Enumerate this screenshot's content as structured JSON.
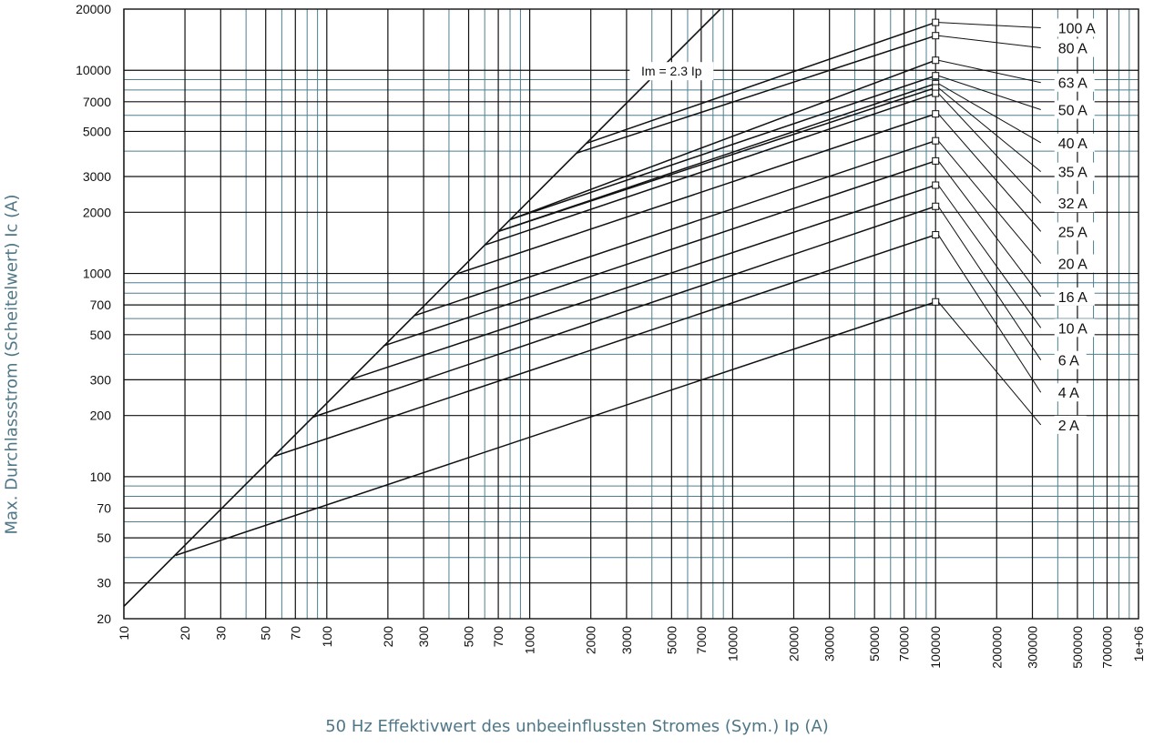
{
  "chart_data": {
    "type": "line",
    "title": "",
    "xlabel": "50 Hz Effektivwert des unbeeinflussten Stromes (Sym.) Ip (A)",
    "ylabel": "Max. Durchlassstrom (Scheitelwert) Ic (A)",
    "xscale": "log",
    "yscale": "log",
    "xlim": [
      10,
      1000000
    ],
    "ylim": [
      20,
      20000
    ],
    "grid": true,
    "x_ticks": [
      "10",
      "20",
      "30",
      "50",
      "70",
      "100",
      "200",
      "300",
      "500",
      "700",
      "1000",
      "2000",
      "3000",
      "5000",
      "7000",
      "10000",
      "20000",
      "30000",
      "50000",
      "70000",
      "100000",
      "200000",
      "300000",
      "500000",
      "700000",
      "1e+06"
    ],
    "x_tick_values": [
      10,
      20,
      30,
      50,
      70,
      100,
      200,
      300,
      500,
      700,
      1000,
      2000,
      3000,
      5000,
      7000,
      10000,
      20000,
      30000,
      50000,
      70000,
      100000,
      200000,
      300000,
      500000,
      700000,
      1000000
    ],
    "y_ticks": [
      "20",
      "30",
      "50",
      "70",
      "100",
      "200",
      "300",
      "500",
      "700",
      "1000",
      "2000",
      "3000",
      "5000",
      "7000",
      "10000",
      "20000"
    ],
    "y_tick_values": [
      20,
      30,
      50,
      70,
      100,
      200,
      300,
      500,
      700,
      1000,
      2000,
      3000,
      5000,
      7000,
      10000,
      20000
    ],
    "reference_line": {
      "label": "Im = 2.3 Ip",
      "points": [
        [
          10,
          23
        ],
        [
          8700,
          20000
        ]
      ],
      "label_at": [
        5000,
        9900
      ]
    },
    "series": [
      {
        "name": "100 A",
        "points": [
          [
            1900,
            4370
          ],
          [
            100000,
            17200
          ]
        ],
        "label_anchor": [
          330000,
          16200
        ]
      },
      {
        "name": "80 A",
        "points": [
          [
            1700,
            3910
          ],
          [
            100000,
            14800
          ]
        ],
        "label_anchor": [
          330000,
          12900
        ]
      },
      {
        "name": "63 A",
        "points": [
          [
            800,
            1840
          ],
          [
            100000,
            11200
          ]
        ],
        "label_anchor": [
          330000,
          8700
        ]
      },
      {
        "name": "50 A",
        "points": [
          [
            800,
            1840
          ],
          [
            100000,
            9400
          ]
        ],
        "label_anchor": [
          330000,
          6400
        ]
      },
      {
        "name": "40 A",
        "points": [
          [
            700,
            1610
          ],
          [
            100000,
            8600
          ]
        ],
        "label_anchor": [
          330000,
          4400
        ]
      },
      {
        "name": "35 A",
        "points": [
          [
            700,
            1610
          ],
          [
            100000,
            8200
          ]
        ],
        "label_anchor": [
          330000,
          3170
        ]
      },
      {
        "name": "32 A",
        "points": [
          [
            600,
            1380
          ],
          [
            100000,
            7700
          ]
        ],
        "label_anchor": [
          330000,
          2220
        ]
      },
      {
        "name": "25 A",
        "points": [
          [
            430,
            990
          ],
          [
            100000,
            6100
          ]
        ],
        "label_anchor": [
          330000,
          1610
        ]
      },
      {
        "name": "20 A",
        "points": [
          [
            270,
            620
          ],
          [
            100000,
            4500
          ]
        ],
        "label_anchor": [
          330000,
          1120
        ]
      },
      {
        "name": "16 A",
        "points": [
          [
            190,
            440
          ],
          [
            100000,
            3580
          ]
        ],
        "label_anchor": [
          330000,
          770
        ]
      },
      {
        "name": "10 A",
        "points": [
          [
            130,
            300
          ],
          [
            100000,
            2720
          ]
        ],
        "label_anchor": [
          330000,
          540
        ]
      },
      {
        "name": "6 A",
        "points": [
          [
            85,
            196
          ],
          [
            100000,
            2140
          ]
        ],
        "label_anchor": [
          330000,
          375
        ]
      },
      {
        "name": "4 A",
        "points": [
          [
            55,
            126
          ],
          [
            100000,
            1550
          ]
        ],
        "label_anchor": [
          330000,
          260
        ]
      },
      {
        "name": "2 A",
        "points": [
          [
            18,
            41
          ],
          [
            100000,
            725
          ]
        ],
        "label_anchor": [
          330000,
          180
        ]
      }
    ]
  }
}
